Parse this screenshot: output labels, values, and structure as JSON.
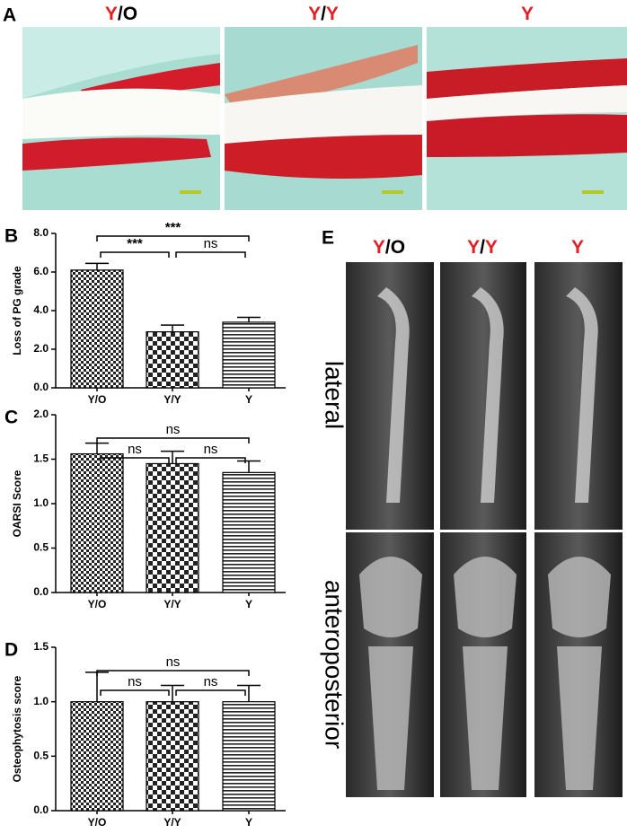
{
  "panel_a": {
    "label": "A",
    "columns": [
      [
        "Y",
        "/O"
      ],
      [
        "Y",
        "/",
        "Y"
      ],
      [
        "Y"
      ]
    ]
  },
  "panel_e": {
    "label": "E",
    "columns": [
      [
        "Y",
        "/O"
      ],
      [
        "Y",
        "/",
        "Y"
      ],
      [
        "Y"
      ]
    ],
    "rows": [
      "lateral",
      "anteroposterior"
    ]
  },
  "chart_data": [
    {
      "type": "bar",
      "label": "B",
      "ylabel": "Loss of PG grade",
      "categories": [
        "Y/O",
        "Y/Y",
        "Y"
      ],
      "values": [
        6.1,
        2.9,
        3.4
      ],
      "errors": [
        0.35,
        0.35,
        0.25
      ],
      "ylim": [
        0,
        8
      ],
      "yticks": [
        {
          "value": 0,
          "label": "0.0"
        },
        {
          "value": 2,
          "label": "2.0"
        },
        {
          "value": 4,
          "label": "4.0"
        },
        {
          "value": 6,
          "label": "6.0"
        },
        {
          "value": 8,
          "label": "8.0"
        }
      ],
      "annotations": [
        {
          "text": "***",
          "from": 0,
          "to": 2
        },
        {
          "text": "***",
          "from": 0,
          "to": 1
        },
        {
          "text": "ns",
          "from": 1,
          "to": 2
        }
      ]
    },
    {
      "type": "bar",
      "label": "C",
      "ylabel": "OARSI Score",
      "categories": [
        "Y/O",
        "Y/Y",
        "Y"
      ],
      "values": [
        1.56,
        1.45,
        1.35
      ],
      "errors": [
        0.12,
        0.14,
        0.13
      ],
      "ylim": [
        0,
        2
      ],
      "yticks": [
        {
          "value": 0,
          "label": "0.0"
        },
        0.5,
        {
          "value": 1,
          "label": "1.0"
        },
        1.5,
        {
          "value": 2,
          "label": "2.0"
        }
      ],
      "annotations": [
        {
          "text": "ns",
          "from": 0,
          "to": 2
        },
        {
          "text": "ns",
          "from": 0,
          "to": 1
        },
        {
          "text": "ns",
          "from": 1,
          "to": 2
        }
      ]
    },
    {
      "type": "bar",
      "label": "D",
      "ylabel": "Osteophytosis score",
      "categories": [
        "Y/O",
        "Y/Y",
        "Y"
      ],
      "values": [
        1.0,
        1.0,
        1.0
      ],
      "errors": [
        0.27,
        0.15,
        0.15
      ],
      "ylim": [
        0,
        1.5
      ],
      "yticks": [
        {
          "value": 0,
          "label": "0.0"
        },
        0.5,
        {
          "value": 1,
          "label": "1.0"
        },
        1.5
      ],
      "annotations": [
        {
          "text": "ns",
          "from": 0,
          "to": 2
        },
        {
          "text": "ns",
          "from": 0,
          "to": 1
        },
        {
          "text": "ns",
          "from": 1,
          "to": 2
        }
      ]
    }
  ]
}
